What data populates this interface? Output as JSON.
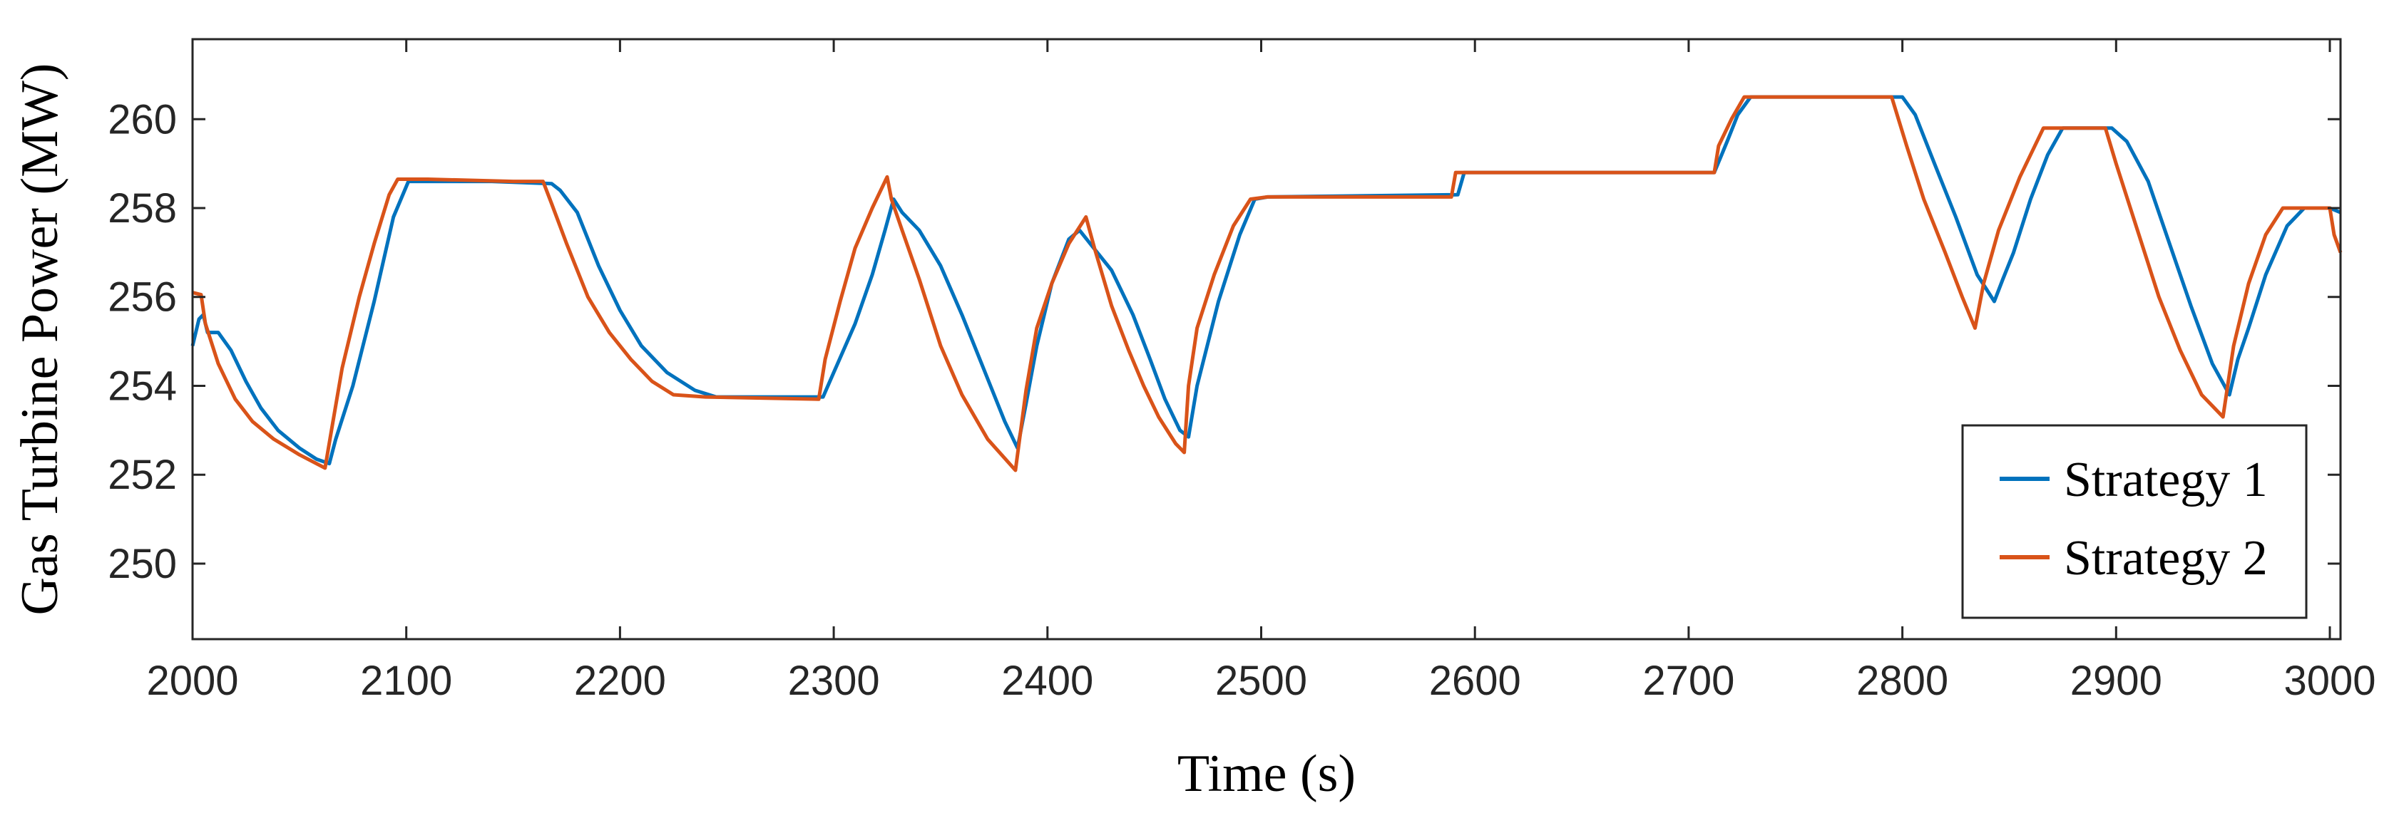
{
  "chart_data": {
    "type": "line",
    "title": "",
    "xlabel": "Time (s)",
    "ylabel": "Gas Turbine Power (MW)",
    "xlim": [
      2000,
      3005
    ],
    "ylim": [
      248.3,
      261.8
    ],
    "xticks": [
      2000,
      2100,
      2200,
      2300,
      2400,
      2500,
      2600,
      2700,
      2800,
      2900,
      3000
    ],
    "yticks": [
      250,
      252,
      254,
      256,
      258,
      260
    ],
    "xtick_labels": [
      "2000",
      "2100",
      "2200",
      "2300",
      "2400",
      "2500",
      "2600",
      "2700",
      "2800",
      "2900",
      "3000"
    ],
    "ytick_labels": [
      "250",
      "252",
      "254",
      "256",
      "258",
      "260"
    ],
    "grid": false,
    "legend_position": "bottom-right",
    "series": [
      {
        "name": "Strategy 1",
        "color": "#0072BD",
        "points": [
          [
            2000,
            254.9
          ],
          [
            2003,
            255.5
          ],
          [
            2005,
            255.6
          ],
          [
            2007,
            255.2
          ],
          [
            2012,
            255.2
          ],
          [
            2018,
            254.8
          ],
          [
            2025,
            254.1
          ],
          [
            2032,
            253.5
          ],
          [
            2040,
            253.0
          ],
          [
            2050,
            252.6
          ],
          [
            2058,
            252.35
          ],
          [
            2064,
            252.25
          ],
          [
            2067,
            252.8
          ],
          [
            2075,
            254.0
          ],
          [
            2085,
            255.9
          ],
          [
            2094,
            257.8
          ],
          [
            2101,
            258.6
          ],
          [
            2110,
            258.6
          ],
          [
            2140,
            258.6
          ],
          [
            2168,
            258.55
          ],
          [
            2172,
            258.4
          ],
          [
            2180,
            257.9
          ],
          [
            2190,
            256.7
          ],
          [
            2200,
            255.7
          ],
          [
            2210,
            254.9
          ],
          [
            2222,
            254.3
          ],
          [
            2235,
            253.9
          ],
          [
            2245,
            253.75
          ],
          [
            2295,
            253.75
          ],
          [
            2300,
            254.3
          ],
          [
            2310,
            255.4
          ],
          [
            2318,
            256.5
          ],
          [
            2324,
            257.5
          ],
          [
            2328,
            258.2
          ],
          [
            2332,
            257.9
          ],
          [
            2340,
            257.5
          ],
          [
            2350,
            256.7
          ],
          [
            2360,
            255.6
          ],
          [
            2370,
            254.4
          ],
          [
            2380,
            253.2
          ],
          [
            2386,
            252.6
          ],
          [
            2390,
            253.6
          ],
          [
            2395,
            254.9
          ],
          [
            2402,
            256.3
          ],
          [
            2410,
            257.3
          ],
          [
            2415,
            257.5
          ],
          [
            2420,
            257.2
          ],
          [
            2430,
            256.6
          ],
          [
            2440,
            255.6
          ],
          [
            2448,
            254.6
          ],
          [
            2455,
            253.7
          ],
          [
            2462,
            253.0
          ],
          [
            2466,
            252.85
          ],
          [
            2470,
            254.0
          ],
          [
            2480,
            255.9
          ],
          [
            2490,
            257.4
          ],
          [
            2497,
            258.2
          ],
          [
            2503,
            258.25
          ],
          [
            2592,
            258.3
          ],
          [
            2595,
            258.8
          ],
          [
            2712,
            258.8
          ],
          [
            2718,
            259.5
          ],
          [
            2723,
            260.1
          ],
          [
            2729,
            260.5
          ],
          [
            2800,
            260.5
          ],
          [
            2806,
            260.1
          ],
          [
            2815,
            259.0
          ],
          [
            2825,
            257.8
          ],
          [
            2835,
            256.5
          ],
          [
            2843,
            255.9
          ],
          [
            2847,
            256.4
          ],
          [
            2852,
            257.0
          ],
          [
            2860,
            258.2
          ],
          [
            2868,
            259.2
          ],
          [
            2875,
            259.8
          ],
          [
            2898,
            259.8
          ],
          [
            2905,
            259.5
          ],
          [
            2915,
            258.6
          ],
          [
            2925,
            257.2
          ],
          [
            2935,
            255.8
          ],
          [
            2945,
            254.5
          ],
          [
            2953,
            253.8
          ],
          [
            2957,
            254.6
          ],
          [
            2962,
            255.3
          ],
          [
            2970,
            256.5
          ],
          [
            2980,
            257.6
          ],
          [
            2988,
            258.0
          ],
          [
            3000,
            258.0
          ],
          [
            3005,
            257.9
          ]
        ]
      },
      {
        "name": "Strategy 2",
        "color": "#D95319",
        "points": [
          [
            2000,
            256.1
          ],
          [
            2004,
            256.05
          ],
          [
            2006,
            255.4
          ],
          [
            2012,
            254.5
          ],
          [
            2020,
            253.7
          ],
          [
            2028,
            253.2
          ],
          [
            2038,
            252.8
          ],
          [
            2050,
            252.45
          ],
          [
            2062,
            252.15
          ],
          [
            2065,
            253.0
          ],
          [
            2070,
            254.4
          ],
          [
            2078,
            256.0
          ],
          [
            2085,
            257.2
          ],
          [
            2092,
            258.3
          ],
          [
            2096,
            258.65
          ],
          [
            2110,
            258.65
          ],
          [
            2150,
            258.6
          ],
          [
            2164,
            258.6
          ],
          [
            2168,
            258.1
          ],
          [
            2175,
            257.2
          ],
          [
            2185,
            256.0
          ],
          [
            2195,
            255.2
          ],
          [
            2205,
            254.6
          ],
          [
            2215,
            254.1
          ],
          [
            2225,
            253.8
          ],
          [
            2240,
            253.75
          ],
          [
            2293,
            253.7
          ],
          [
            2296,
            254.6
          ],
          [
            2303,
            255.9
          ],
          [
            2310,
            257.1
          ],
          [
            2318,
            258.0
          ],
          [
            2325,
            258.7
          ],
          [
            2327,
            258.2
          ],
          [
            2332,
            257.5
          ],
          [
            2340,
            256.4
          ],
          [
            2350,
            254.9
          ],
          [
            2360,
            253.8
          ],
          [
            2372,
            252.8
          ],
          [
            2385,
            252.1
          ],
          [
            2390,
            253.9
          ],
          [
            2395,
            255.3
          ],
          [
            2402,
            256.3
          ],
          [
            2410,
            257.2
          ],
          [
            2418,
            257.8
          ],
          [
            2422,
            257.1
          ],
          [
            2430,
            255.8
          ],
          [
            2438,
            254.8
          ],
          [
            2445,
            254.0
          ],
          [
            2452,
            253.3
          ],
          [
            2460,
            252.7
          ],
          [
            2464,
            252.5
          ],
          [
            2466,
            254.0
          ],
          [
            2470,
            255.3
          ],
          [
            2478,
            256.5
          ],
          [
            2487,
            257.6
          ],
          [
            2495,
            258.2
          ],
          [
            2503,
            258.25
          ],
          [
            2589,
            258.25
          ],
          [
            2591,
            258.8
          ],
          [
            2712,
            258.8
          ],
          [
            2714,
            259.4
          ],
          [
            2720,
            260.0
          ],
          [
            2726,
            260.5
          ],
          [
            2795,
            260.5
          ],
          [
            2802,
            259.4
          ],
          [
            2810,
            258.2
          ],
          [
            2820,
            257.0
          ],
          [
            2828,
            256.0
          ],
          [
            2834,
            255.3
          ],
          [
            2838,
            256.3
          ],
          [
            2845,
            257.5
          ],
          [
            2855,
            258.7
          ],
          [
            2866,
            259.8
          ],
          [
            2895,
            259.8
          ],
          [
            2900,
            259.0
          ],
          [
            2910,
            257.5
          ],
          [
            2920,
            256.0
          ],
          [
            2930,
            254.8
          ],
          [
            2940,
            253.8
          ],
          [
            2950,
            253.3
          ],
          [
            2955,
            254.9
          ],
          [
            2962,
            256.3
          ],
          [
            2970,
            257.4
          ],
          [
            2978,
            258.0
          ],
          [
            3000,
            258.0
          ],
          [
            3002,
            257.4
          ],
          [
            3005,
            257.0
          ]
        ]
      }
    ]
  }
}
